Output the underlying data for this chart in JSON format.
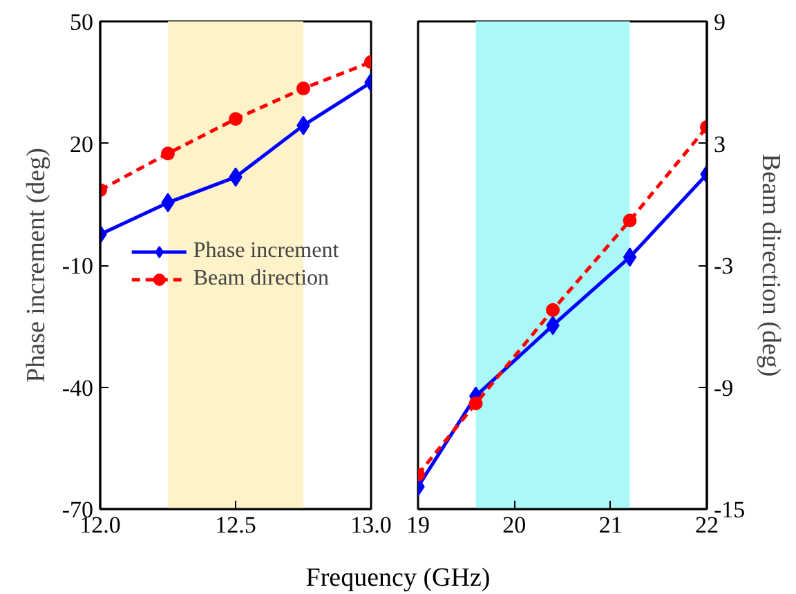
{
  "chart_data": [
    {
      "type": "line",
      "xlabel": "Frequency (GHz)",
      "ylabel": "Phase increment (deg)",
      "x": [
        12.0,
        12.25,
        12.5,
        12.75,
        13.0
      ],
      "series": [
        {
          "name": "Phase increment",
          "color": "#0000ff",
          "marker": "diamond",
          "line_style": "solid",
          "values": [
            -2.4,
            5.4,
            11.7,
            24.4,
            35
          ]
        },
        {
          "name": "Beam direction",
          "color": "#ff0000",
          "marker": "circle",
          "line_style": "dashed",
          "axis": "y2",
          "values": [
            0.7,
            2.5,
            4.2,
            5.7,
            7.0
          ]
        }
      ],
      "xlim": [
        12.0,
        13.0
      ],
      "xticks": [
        {
          "value": 12.0,
          "label": "12.0"
        },
        {
          "value": 12.5,
          "label": "12.5"
        },
        {
          "value": 13.0,
          "label": "13.0"
        }
      ],
      "ylim": [
        -70,
        50
      ],
      "yticks": [
        -70,
        -40,
        -10,
        20,
        50
      ],
      "y2lim": [
        -15,
        9
      ],
      "bands": [
        {
          "axis": "x",
          "from": 12.25,
          "to": 12.75,
          "color": "#fdf2c8"
        }
      ],
      "grid": false,
      "legend": "center"
    },
    {
      "type": "line",
      "y2label": "Beam direction (deg)",
      "x": [
        19.0,
        19.6,
        20.4,
        21.2,
        22.0
      ],
      "series": [
        {
          "color": "#0000ff",
          "marker": "diamond",
          "line_style": "solid",
          "values": [
            -64.5,
            -42.2,
            -24.8,
            -8.0,
            12.4
          ]
        },
        {
          "color": "#ff0000",
          "marker": "circle",
          "line_style": "dashed",
          "axis": "y2",
          "values": [
            -13.3,
            -9.8,
            -5.2,
            -0.8,
            3.8
          ]
        }
      ],
      "xlim": [
        19,
        22
      ],
      "xticks": [
        19,
        20,
        21,
        22
      ],
      "ylim": [
        -70,
        50
      ],
      "y2lim": [
        -15,
        9
      ],
      "y2ticks": [
        -15,
        -9,
        -3,
        3,
        9
      ],
      "bands": [
        {
          "axis": "x",
          "from": 19.6,
          "to": 21.2,
          "color": "#aaf8f8"
        }
      ],
      "grid": false,
      "legend": false
    }
  ]
}
